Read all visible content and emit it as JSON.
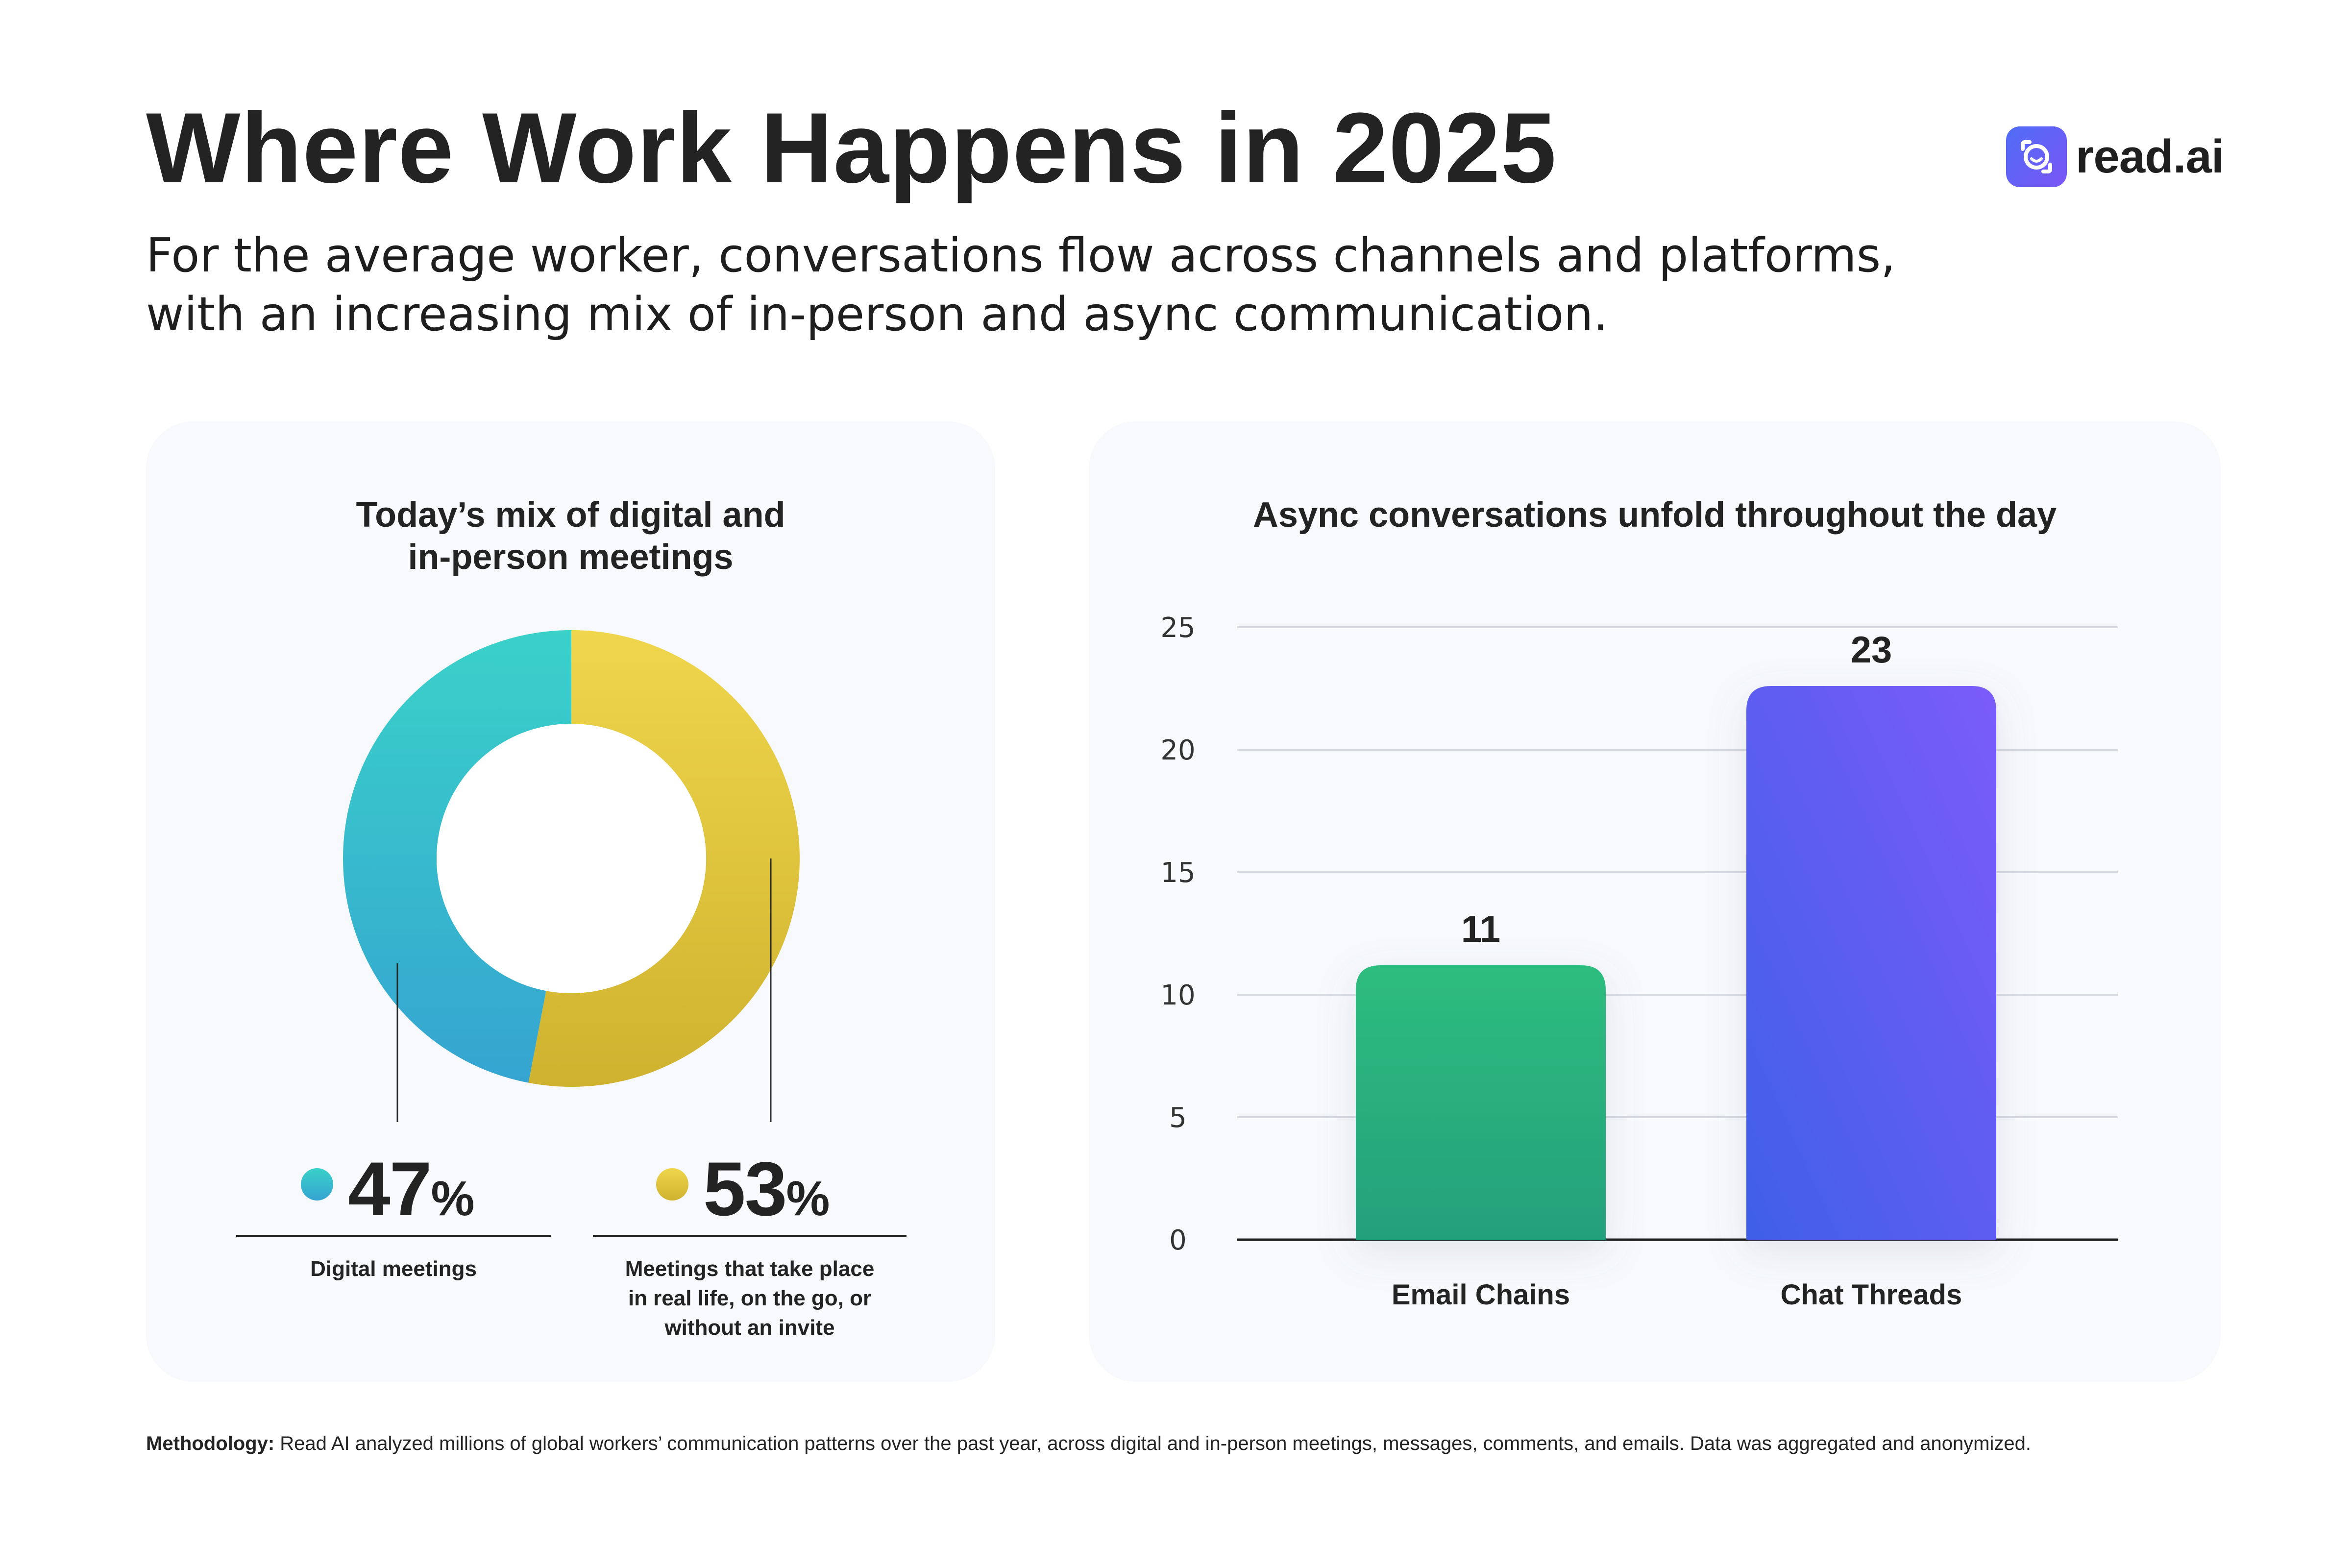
{
  "header": {
    "title": "Where Work Happens in 2025",
    "subtitle_line1": "For the average worker, conversations flow across channels and platforms,",
    "subtitle_line2": "with an increasing mix of in-person and async communication."
  },
  "brand": {
    "logo_text": "read.ai",
    "accent": "#5b63f6"
  },
  "colors": {
    "teal_top": "#3ad1c9",
    "teal_bottom": "#35a4d1",
    "yellow_top": "#efd64c",
    "yellow_bottom": "#cfb22f",
    "green_top": "#2ebd7e",
    "green_bottom": "#24a07c",
    "purple_top": "#7b5bfa",
    "purple_bottom": "#3f5fe8",
    "card_bg": "#f8f9fd",
    "grid": "#d6d9e0",
    "axis": "#1e1e1e"
  },
  "chart_data": [
    {
      "type": "pie",
      "title_line1": "Today’s mix of digital and",
      "title_line2": "in-person meetings",
      "slices": [
        {
          "name": "Digital meetings",
          "value": 47,
          "value_text": "47",
          "unit": "%",
          "label_lines": [
            "Digital meetings"
          ]
        },
        {
          "name": "Meetings that take place in real life, on the go, or without an invite",
          "value": 53,
          "value_text": "53",
          "unit": "%",
          "label_lines": [
            "Meetings  that take place",
            "in real life, on the go, or",
            "without an invite"
          ]
        }
      ]
    },
    {
      "type": "bar",
      "title": "Async conversations unfold throughout the day",
      "categories": [
        "Email Chains",
        "Chat Threads"
      ],
      "values": [
        11.2,
        22.6
      ],
      "value_labels": [
        "11",
        "23"
      ],
      "ylim": [
        0,
        25
      ],
      "yticks": [
        0,
        5,
        10,
        15,
        20,
        25
      ],
      "ytick_labels": [
        "0",
        "5",
        "10",
        "15",
        "20",
        "25"
      ],
      "grid": true
    }
  ],
  "footer": {
    "label": "Methodology:",
    "text": " Read AI analyzed millions of global workers’ communication patterns over the past year, across digital and in-person meetings, messages, comments, and emails. Data was aggregated and anonymized."
  }
}
